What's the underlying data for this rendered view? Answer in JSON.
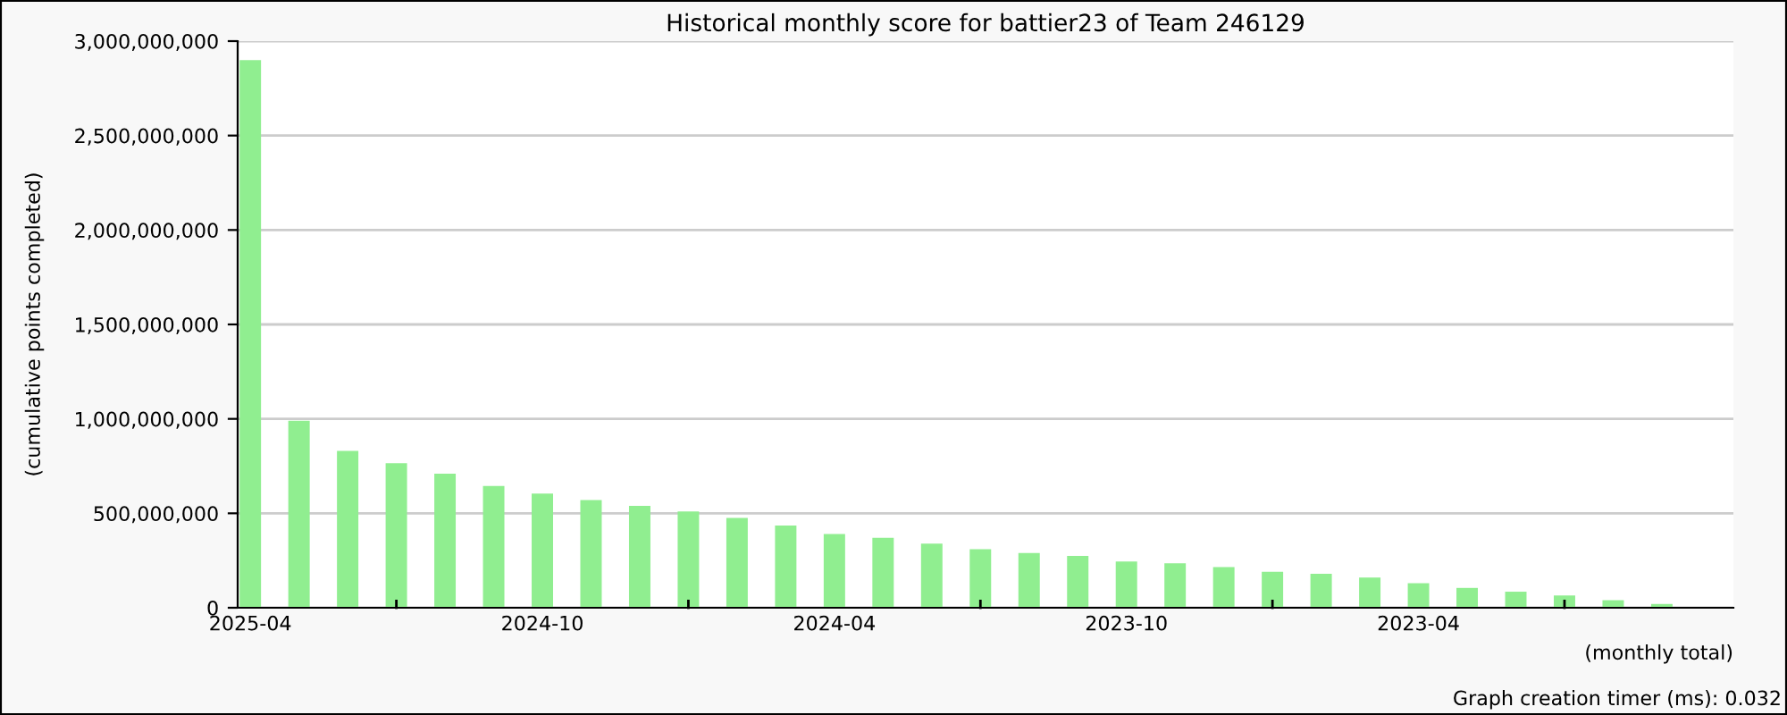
{
  "chart_data": {
    "type": "bar",
    "title": "Historical monthly score for battier23 of Team 246129",
    "xlabel": "(monthly total)",
    "ylabel": "(cumulative points completed)",
    "annotations": [
      "Graph creation timer (ms): 0.032"
    ],
    "categories": [
      "2025-04",
      null,
      null,
      null,
      null,
      null,
      "2024-10",
      null,
      null,
      null,
      null,
      null,
      "2024-04",
      null,
      null,
      null,
      null,
      null,
      "2023-10",
      null,
      null,
      null,
      null,
      null,
      "2023-04",
      null,
      null,
      null,
      null,
      null
    ],
    "values": [
      2900000000,
      990000000,
      830000000,
      765000000,
      710000000,
      645000000,
      605000000,
      570000000,
      540000000,
      510000000,
      475000000,
      435000000,
      390000000,
      370000000,
      340000000,
      310000000,
      290000000,
      275000000,
      245000000,
      235000000,
      215000000,
      190000000,
      180000000,
      160000000,
      130000000,
      105000000,
      85000000,
      65000000,
      40000000,
      20000000
    ],
    "color": "#90ee90",
    "ylim": [
      0,
      3000000000
    ],
    "yticks": [
      {
        "value": 0,
        "label": "0"
      },
      {
        "value": 500000000,
        "label": "500,000,000"
      },
      {
        "value": 1000000000,
        "label": "1,000,000,000"
      },
      {
        "value": 1500000000,
        "label": "1,500,000,000"
      },
      {
        "value": 2000000000,
        "label": "2,000,000,000"
      },
      {
        "value": 2500000000,
        "label": "2,500,000,000"
      },
      {
        "value": 3000000000,
        "label": "3,000,000,000"
      }
    ],
    "grid": "y",
    "legend": false
  }
}
